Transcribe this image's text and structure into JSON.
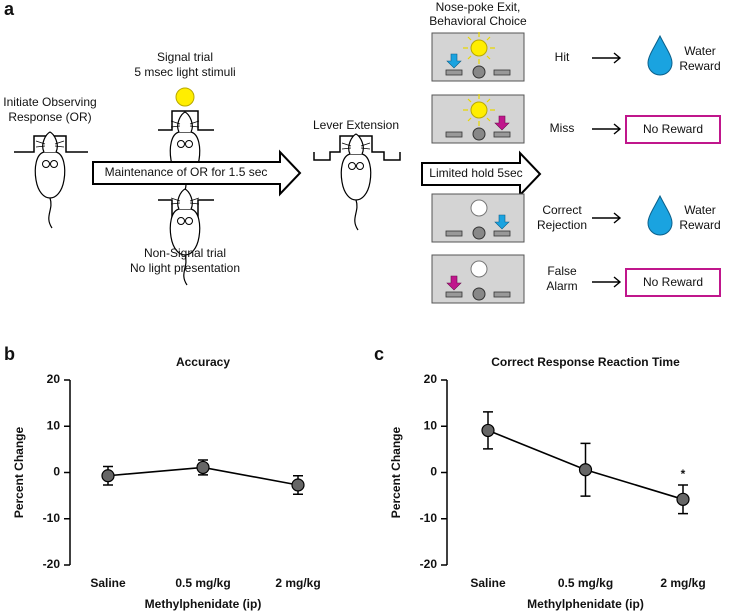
{
  "panel_labels": [
    "a",
    "b",
    "c"
  ],
  "diagram": {
    "initiate": [
      "Initiate Observing",
      "Response (OR)"
    ],
    "signal_trial": [
      "Signal trial",
      "5 msec light stimuli"
    ],
    "non_signal_trial": [
      "Non-Signal trial",
      "No light presentation"
    ],
    "maintenance": "Maintenance of OR for 1.5 sec",
    "lever_extension": "Lever Extension",
    "limited_hold": "Limited hold 5sec",
    "choice_header": [
      "Nose-poke Exit,",
      "Behavioral Choice"
    ],
    "outcomes": [
      {
        "label": [
          "Hit"
        ],
        "result": [
          "Water",
          "Reward"
        ]
      },
      {
        "label": [
          "Miss"
        ],
        "result": [
          "No Reward"
        ]
      },
      {
        "label": [
          "Correct",
          "Rejection"
        ],
        "result": [
          "Water",
          "Reward"
        ]
      },
      {
        "label": [
          "False",
          "Alarm"
        ],
        "result": [
          "No Reward"
        ]
      }
    ]
  },
  "chart_data": [
    {
      "type": "line",
      "title": "Accuracy",
      "xlabel": "Methylphenidate (ip)",
      "ylabel": "Percent Change",
      "categories": [
        "Saline",
        "0.5 mg/kg",
        "2 mg/kg"
      ],
      "series": [
        {
          "color": "#666666",
          "values": [
            -0.7,
            1.1,
            -2.7
          ],
          "errors": [
            2.0,
            1.6,
            2.0
          ]
        }
      ],
      "ylim": [
        -20,
        20
      ],
      "yticks": [
        -20,
        -10,
        0,
        10,
        20
      ]
    },
    {
      "type": "line",
      "title": "Correct Response Reaction Time",
      "xlabel": "Methylphenidate (ip)",
      "ylabel": "Percent Change",
      "categories": [
        "Saline",
        "0.5 mg/kg",
        "2 mg/kg"
      ],
      "series": [
        {
          "color": "#666666",
          "values": [
            9.1,
            0.6,
            -5.8
          ],
          "errors": [
            4.0,
            5.7,
            3.1
          ]
        }
      ],
      "ylim": [
        -20,
        20
      ],
      "yticks": [
        -20,
        -10,
        0,
        10,
        20
      ],
      "annotations": [
        {
          "text": "*",
          "category": "2 mg/kg"
        }
      ]
    }
  ]
}
